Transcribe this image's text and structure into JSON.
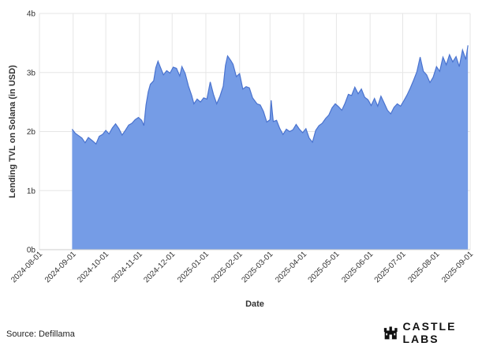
{
  "chart_data": {
    "type": "area",
    "xlabel": "Date",
    "ylabel": "Lending TVL on Solana (in USD)",
    "ylim": [
      0,
      4000000000
    ],
    "y_ticks": [
      {
        "value": 0,
        "label": "0b"
      },
      {
        "value": 1000000000,
        "label": "1b"
      },
      {
        "value": 2000000000,
        "label": "2b"
      },
      {
        "value": 3000000000,
        "label": "3b"
      },
      {
        "value": 4000000000,
        "label": "4b"
      }
    ],
    "x_ticks": [
      "2024-08-01",
      "2024-09-01",
      "2024-10-01",
      "2024-11-01",
      "2024-12-01",
      "2025-01-01",
      "2025-02-01",
      "2025-03-01",
      "2025-04-01",
      "2025-05-01",
      "2025-06-01",
      "2025-07-01",
      "2025-08-01",
      "2025-09-01"
    ],
    "xlim": [
      "2024-08-01",
      "2025-09-01"
    ],
    "grid": true,
    "fill_color": "#759ce6",
    "line_color": "#4a73cf",
    "points": [
      [
        "2024-08-31",
        2040000000.0
      ],
      [
        "2024-09-03",
        1970000000.0
      ],
      [
        "2024-09-06",
        1930000000.0
      ],
      [
        "2024-09-09",
        1890000000.0
      ],
      [
        "2024-09-12",
        1810000000.0
      ],
      [
        "2024-09-15",
        1900000000.0
      ],
      [
        "2024-09-19",
        1840000000.0
      ],
      [
        "2024-09-22",
        1790000000.0
      ],
      [
        "2024-09-25",
        1920000000.0
      ],
      [
        "2024-09-28",
        1950000000.0
      ],
      [
        "2024-10-01",
        2020000000.0
      ],
      [
        "2024-10-04",
        1960000000.0
      ],
      [
        "2024-10-07",
        2060000000.0
      ],
      [
        "2024-10-10",
        2130000000.0
      ],
      [
        "2024-10-13",
        2050000000.0
      ],
      [
        "2024-10-16",
        1940000000.0
      ],
      [
        "2024-10-19",
        2020000000.0
      ],
      [
        "2024-10-22",
        2110000000.0
      ],
      [
        "2024-10-25",
        2140000000.0
      ],
      [
        "2024-10-28",
        2200000000.0
      ],
      [
        "2024-10-31",
        2240000000.0
      ],
      [
        "2024-11-03",
        2190000000.0
      ],
      [
        "2024-11-05",
        2100000000.0
      ],
      [
        "2024-11-07",
        2450000000.0
      ],
      [
        "2024-11-09",
        2670000000.0
      ],
      [
        "2024-11-11",
        2800000000.0
      ],
      [
        "2024-11-14",
        2860000000.0
      ],
      [
        "2024-11-16",
        3080000000.0
      ],
      [
        "2024-11-18",
        3190000000.0
      ],
      [
        "2024-11-20",
        3100000000.0
      ],
      [
        "2024-11-23",
        2960000000.0
      ],
      [
        "2024-11-26",
        3030000000.0
      ],
      [
        "2024-11-29",
        2990000000.0
      ],
      [
        "2024-12-02",
        3090000000.0
      ],
      [
        "2024-12-05",
        3070000000.0
      ],
      [
        "2024-12-08",
        2940000000.0
      ],
      [
        "2024-12-10",
        3100000000.0
      ],
      [
        "2024-12-13",
        2980000000.0
      ],
      [
        "2024-12-16",
        2770000000.0
      ],
      [
        "2024-12-19",
        2610000000.0
      ],
      [
        "2024-12-21",
        2470000000.0
      ],
      [
        "2024-12-24",
        2550000000.0
      ],
      [
        "2024-12-27",
        2500000000.0
      ],
      [
        "2024-12-30",
        2570000000.0
      ],
      [
        "2025-01-02",
        2550000000.0
      ],
      [
        "2025-01-05",
        2840000000.0
      ],
      [
        "2025-01-08",
        2630000000.0
      ],
      [
        "2025-01-11",
        2470000000.0
      ],
      [
        "2025-01-14",
        2600000000.0
      ],
      [
        "2025-01-17",
        2770000000.0
      ],
      [
        "2025-01-19",
        3120000000.0
      ],
      [
        "2025-01-21",
        3280000000.0
      ],
      [
        "2025-01-24",
        3200000000.0
      ],
      [
        "2025-01-26",
        3140000000.0
      ],
      [
        "2025-01-29",
        2930000000.0
      ],
      [
        "2025-02-01",
        2980000000.0
      ],
      [
        "2025-02-04",
        2720000000.0
      ],
      [
        "2025-02-07",
        2760000000.0
      ],
      [
        "2025-02-10",
        2740000000.0
      ],
      [
        "2025-02-13",
        2570000000.0
      ],
      [
        "2025-02-17",
        2470000000.0
      ],
      [
        "2025-02-20",
        2450000000.0
      ],
      [
        "2025-02-23",
        2340000000.0
      ],
      [
        "2025-02-26",
        2160000000.0
      ],
      [
        "2025-03-01",
        2200000000.0
      ],
      [
        "2025-03-02",
        2530000000.0
      ],
      [
        "2025-03-04",
        2170000000.0
      ],
      [
        "2025-03-07",
        2190000000.0
      ],
      [
        "2025-03-10",
        2050000000.0
      ],
      [
        "2025-03-13",
        1950000000.0
      ],
      [
        "2025-03-16",
        2040000000.0
      ],
      [
        "2025-03-19",
        2000000000.0
      ],
      [
        "2025-03-22",
        2030000000.0
      ],
      [
        "2025-03-25",
        2120000000.0
      ],
      [
        "2025-03-28",
        2040000000.0
      ],
      [
        "2025-03-31",
        1980000000.0
      ],
      [
        "2025-04-03",
        2050000000.0
      ],
      [
        "2025-04-06",
        1890000000.0
      ],
      [
        "2025-04-09",
        1820000000.0
      ],
      [
        "2025-04-12",
        2020000000.0
      ],
      [
        "2025-04-15",
        2100000000.0
      ],
      [
        "2025-04-18",
        2140000000.0
      ],
      [
        "2025-04-21",
        2220000000.0
      ],
      [
        "2025-04-24",
        2280000000.0
      ],
      [
        "2025-04-27",
        2400000000.0
      ],
      [
        "2025-04-30",
        2470000000.0
      ],
      [
        "2025-05-03",
        2420000000.0
      ],
      [
        "2025-05-06",
        2360000000.0
      ],
      [
        "2025-05-09",
        2480000000.0
      ],
      [
        "2025-05-12",
        2630000000.0
      ],
      [
        "2025-05-15",
        2610000000.0
      ],
      [
        "2025-05-18",
        2750000000.0
      ],
      [
        "2025-05-21",
        2640000000.0
      ],
      [
        "2025-05-24",
        2720000000.0
      ],
      [
        "2025-05-27",
        2580000000.0
      ],
      [
        "2025-05-30",
        2540000000.0
      ],
      [
        "2025-06-02",
        2440000000.0
      ],
      [
        "2025-06-05",
        2560000000.0
      ],
      [
        "2025-06-08",
        2430000000.0
      ],
      [
        "2025-06-11",
        2600000000.0
      ],
      [
        "2025-06-14",
        2480000000.0
      ],
      [
        "2025-06-17",
        2360000000.0
      ],
      [
        "2025-06-20",
        2300000000.0
      ],
      [
        "2025-06-23",
        2410000000.0
      ],
      [
        "2025-06-26",
        2470000000.0
      ],
      [
        "2025-06-29",
        2430000000.0
      ],
      [
        "2025-07-02",
        2520000000.0
      ],
      [
        "2025-07-05",
        2620000000.0
      ],
      [
        "2025-07-08",
        2740000000.0
      ],
      [
        "2025-07-11",
        2870000000.0
      ],
      [
        "2025-07-14",
        3010000000.0
      ],
      [
        "2025-07-17",
        3260000000.0
      ],
      [
        "2025-07-20",
        3020000000.0
      ],
      [
        "2025-07-23",
        2960000000.0
      ],
      [
        "2025-07-26",
        2830000000.0
      ],
      [
        "2025-07-29",
        2920000000.0
      ],
      [
        "2025-08-01",
        3100000000.0
      ],
      [
        "2025-08-04",
        3020000000.0
      ],
      [
        "2025-08-07",
        3260000000.0
      ],
      [
        "2025-08-10",
        3130000000.0
      ],
      [
        "2025-08-13",
        3300000000.0
      ],
      [
        "2025-08-16",
        3180000000.0
      ],
      [
        "2025-08-19",
        3270000000.0
      ],
      [
        "2025-08-22",
        3100000000.0
      ],
      [
        "2025-08-25",
        3380000000.0
      ],
      [
        "2025-08-28",
        3220000000.0
      ],
      [
        "2025-08-30",
        3460000000.0
      ]
    ]
  },
  "footer": {
    "source": "Source: Defillama",
    "brand": "CASTLE LABS"
  },
  "icons": {
    "brand_logo": "castle-icon"
  }
}
